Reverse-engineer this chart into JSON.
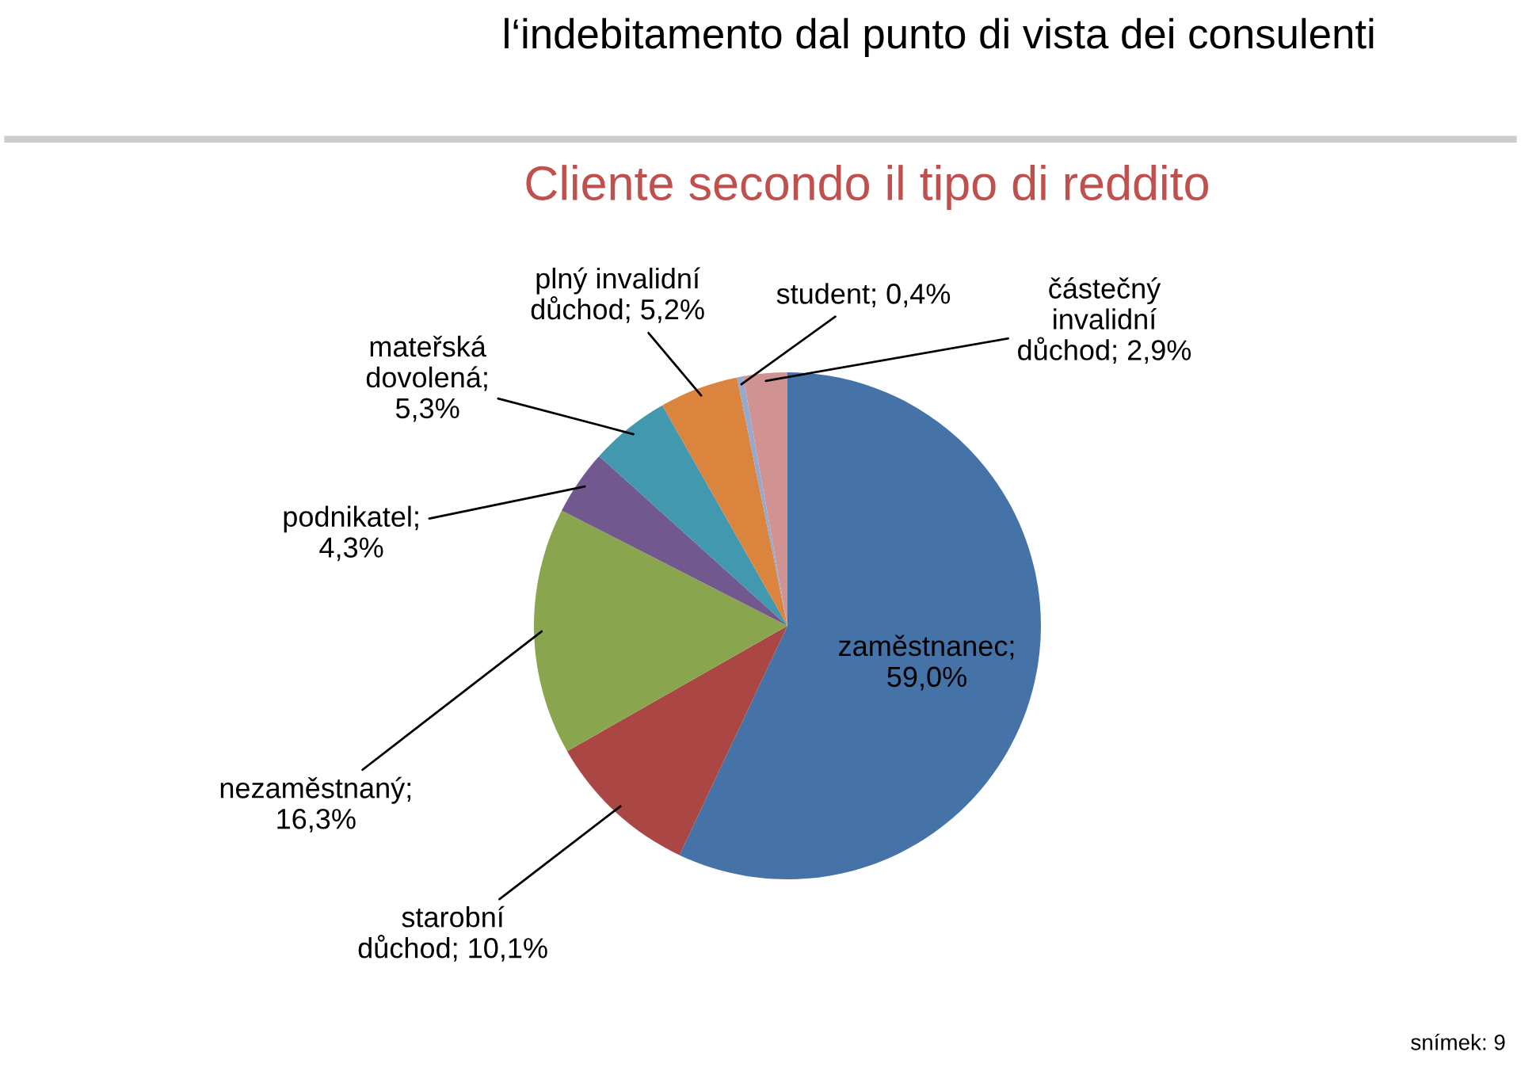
{
  "chart_data": {
    "type": "pie",
    "title": "l‘indebitamento dal punto di vista dei consulenti",
    "subtitle": "Cliente secondo il tipo di reddito",
    "categories": [
      "zaměstnanec; 59,0%",
      "starobní důchod; 10,1%",
      "nezaměstnaný; 16,3%",
      "podnikatel; 4,3%",
      "mateřská dovolená; 5,3%",
      "plný invalidní důchod; 5,2%",
      "student; 0,4%",
      "částečný invalidní důchod; 2,9%"
    ],
    "values": [
      59.0,
      10.1,
      16.3,
      4.3,
      5.3,
      5.2,
      0.4,
      2.9
    ],
    "colors": [
      "#4572a7",
      "#aa4643",
      "#89a54e",
      "#71588f",
      "#4198af",
      "#db843d",
      "#93a9cf",
      "#d19392"
    ],
    "legend": false,
    "annotations": [
      "snímek: 9"
    ]
  }
}
